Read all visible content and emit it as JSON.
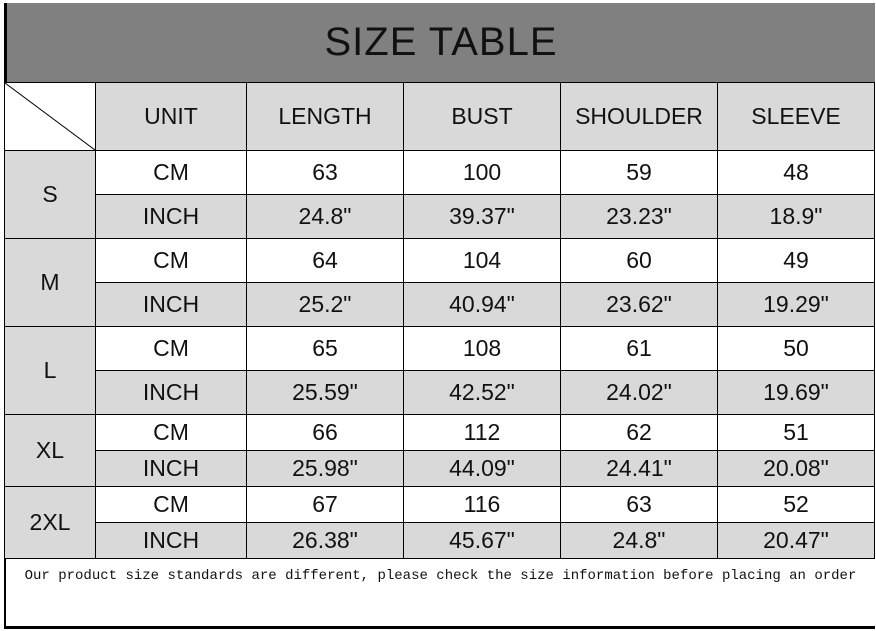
{
  "title": "SIZE TABLE",
  "headers": [
    "UNIT",
    "LENGTH",
    "BUST",
    "SHOULDER",
    "SLEEVE"
  ],
  "rows": [
    {
      "size": "S",
      "cm": {
        "unit": "CM",
        "values": [
          "63",
          "100",
          "59",
          "48"
        ]
      },
      "inch": {
        "unit": "INCH",
        "values": [
          "24.8\"",
          "39.37\"",
          "23.23\"",
          "18.9\""
        ]
      }
    },
    {
      "size": "M",
      "cm": {
        "unit": "CM",
        "values": [
          "64",
          "104",
          "60",
          "49"
        ]
      },
      "inch": {
        "unit": "INCH",
        "values": [
          "25.2\"",
          "40.94\"",
          "23.62\"",
          "19.29\""
        ]
      }
    },
    {
      "size": "L",
      "cm": {
        "unit": "CM",
        "values": [
          "65",
          "108",
          "61",
          "50"
        ]
      },
      "inch": {
        "unit": "INCH",
        "values": [
          "25.59\"",
          "42.52\"",
          "24.02\"",
          "19.69\""
        ]
      }
    },
    {
      "size": "XL",
      "cm": {
        "unit": "CM",
        "values": [
          "66",
          "112",
          "62",
          "51"
        ]
      },
      "inch": {
        "unit": "INCH",
        "values": [
          "25.98\"",
          "44.09\"",
          "24.41\"",
          "20.08\""
        ]
      }
    },
    {
      "size": "2XL",
      "cm": {
        "unit": "CM",
        "values": [
          "67",
          "116",
          "63",
          "52"
        ]
      },
      "inch": {
        "unit": "INCH",
        "values": [
          "26.38\"",
          "45.67\"",
          "24.8\"",
          "20.47\""
        ]
      }
    }
  ],
  "footer_note": "Our product size standards are different, please check the size information before placing an order"
}
